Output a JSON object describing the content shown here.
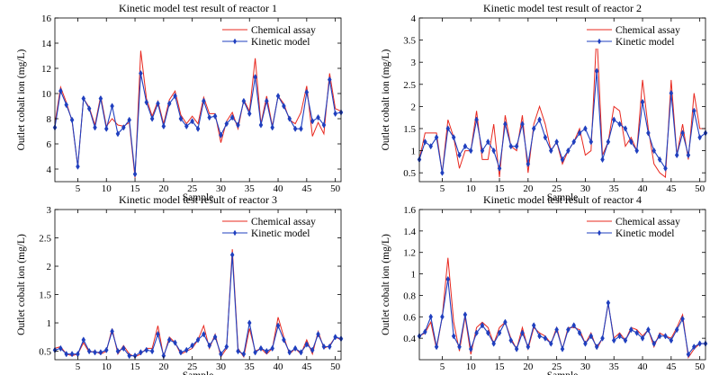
{
  "colors": {
    "chemical": "#e8281f",
    "kinetic": "#1f3fbf",
    "axis": "#000000"
  },
  "legend_labels": [
    "Chemical assay",
    "Kinetic model"
  ],
  "chart_data": [
    {
      "type": "line",
      "title": "Kinetic model test result of reactor 1",
      "xlabel": "Sample",
      "ylabel": "Outlet cobalt ion (mg/L)",
      "xlim": [
        1,
        51
      ],
      "ylim": [
        3,
        16
      ],
      "xticks": [
        5,
        10,
        15,
        20,
        25,
        30,
        35,
        40,
        45,
        50
      ],
      "xtick_labels": [
        "5",
        "10",
        "15",
        "20",
        "25",
        "30",
        "35",
        "40",
        "45",
        "50"
      ],
      "yticks": [
        4,
        6,
        8,
        10,
        12,
        14,
        16
      ],
      "ytick_labels": [
        "4",
        "6",
        "8",
        "10",
        "12",
        "14",
        "16"
      ],
      "grid": false,
      "legend": "top-right",
      "x": [
        1,
        2,
        3,
        4,
        5,
        6,
        7,
        8,
        9,
        10,
        11,
        12,
        13,
        14,
        15,
        16,
        17,
        18,
        19,
        20,
        21,
        22,
        23,
        24,
        25,
        26,
        27,
        28,
        29,
        30,
        31,
        32,
        33,
        34,
        35,
        36,
        37,
        38,
        39,
        40,
        41,
        42,
        43,
        44,
        45,
        46,
        47,
        48,
        49,
        50,
        51
      ],
      "series": [
        {
          "name": "Chemical assay",
          "values": [
            7.6,
            10.5,
            9.3,
            7.8,
            4.2,
            9.6,
            8.9,
            7.5,
            9.8,
            7.4,
            8.0,
            7.5,
            7.4,
            7.7,
            3.3,
            13.4,
            9.6,
            8.2,
            9.4,
            7.6,
            9.5,
            10.2,
            8.3,
            7.6,
            8.2,
            7.6,
            9.7,
            8.4,
            8.4,
            6.1,
            7.8,
            8.5,
            7.2,
            9.5,
            8.6,
            12.8,
            7.6,
            9.8,
            7.4,
            9.8,
            9.2,
            7.9,
            7.6,
            8.5,
            10.6,
            6.6,
            7.7,
            6.8,
            11.6,
            8.8,
            8.6
          ]
        },
        {
          "name": "Kinetic model",
          "values": [
            7.3,
            10.2,
            9.1,
            7.9,
            4.2,
            9.6,
            8.8,
            7.3,
            9.6,
            7.2,
            9.0,
            6.8,
            7.3,
            7.9,
            3.6,
            11.6,
            9.3,
            8.0,
            9.2,
            7.4,
            9.2,
            9.8,
            8.0,
            7.4,
            7.8,
            7.2,
            9.4,
            8.1,
            8.2,
            6.7,
            7.6,
            8.1,
            7.5,
            9.4,
            8.4,
            11.3,
            7.5,
            9.4,
            7.3,
            9.8,
            9.0,
            8.0,
            7.2,
            7.2,
            10.1,
            7.8,
            8.1,
            7.5,
            11.1,
            8.4,
            8.5
          ]
        }
      ]
    },
    {
      "type": "line",
      "title": "Kinetic model test result of reactor 2",
      "xlabel": "Sample",
      "ylabel": "Outlet cobalt ion (mg/L)",
      "xlim": [
        1,
        51
      ],
      "ylim": [
        0.3,
        4
      ],
      "xticks": [
        5,
        10,
        15,
        20,
        25,
        30,
        35,
        40,
        45,
        50
      ],
      "xtick_labels": [
        "5",
        "10",
        "15",
        "20",
        "25",
        "30",
        "35",
        "40",
        "45",
        "50"
      ],
      "yticks": [
        0.5,
        1,
        1.5,
        2,
        2.5,
        3,
        3.5,
        4
      ],
      "ytick_labels": [
        "0.5",
        "1",
        "1.5",
        "2",
        "2.5",
        "3",
        "3.5",
        "4"
      ],
      "grid": false,
      "legend": "top-right",
      "x": [
        1,
        2,
        3,
        4,
        5,
        6,
        7,
        8,
        9,
        10,
        11,
        12,
        13,
        14,
        15,
        16,
        17,
        18,
        19,
        20,
        21,
        22,
        23,
        24,
        25,
        26,
        27,
        28,
        29,
        30,
        31,
        32,
        33,
        34,
        35,
        36,
        37,
        38,
        39,
        40,
        41,
        42,
        43,
        44,
        45,
        46,
        47,
        48,
        49,
        50,
        51
      ],
      "series": [
        {
          "name": "Chemical assay",
          "values": [
            0.8,
            1.4,
            1.4,
            1.4,
            0.5,
            1.7,
            1.3,
            0.6,
            1.0,
            1.0,
            1.9,
            0.8,
            0.8,
            1.6,
            0.4,
            1.8,
            1.1,
            1.0,
            1.8,
            0.5,
            1.6,
            2.0,
            1.6,
            1.0,
            1.2,
            0.7,
            1.0,
            1.2,
            1.5,
            0.9,
            1.0,
            3.7,
            0.9,
            1.2,
            2.0,
            1.9,
            1.1,
            1.3,
            1.0,
            2.6,
            1.5,
            0.7,
            0.5,
            0.4,
            2.6,
            0.9,
            1.6,
            0.8,
            2.3,
            1.5,
            1.5
          ]
        },
        {
          "name": "Kinetic model",
          "values": [
            0.8,
            1.2,
            1.1,
            1.3,
            0.5,
            1.5,
            1.3,
            0.9,
            1.1,
            1.0,
            1.7,
            1.0,
            1.2,
            1.0,
            0.6,
            1.6,
            1.1,
            1.1,
            1.6,
            0.7,
            1.5,
            1.7,
            1.3,
            1.0,
            1.2,
            0.8,
            1.0,
            1.2,
            1.4,
            1.5,
            1.2,
            2.8,
            0.8,
            1.2,
            1.7,
            1.6,
            1.5,
            1.2,
            1.0,
            2.1,
            1.4,
            1.0,
            0.8,
            0.6,
            2.3,
            0.9,
            1.4,
            0.9,
            1.9,
            1.3,
            1.4
          ]
        }
      ]
    },
    {
      "type": "line",
      "title": "Kinetic model test result of reactor 3",
      "xlabel": "Sample",
      "ylabel": "Outlet cobalt ion (mg/L)",
      "xlim": [
        1,
        51
      ],
      "ylim": [
        0.35,
        3
      ],
      "xticks": [
        5,
        10,
        15,
        20,
        25,
        30,
        35,
        40,
        45,
        50
      ],
      "xtick_labels": [
        "5",
        "10",
        "15",
        "20",
        "25",
        "30",
        "35",
        "40",
        "45",
        "50"
      ],
      "yticks": [
        0.5,
        1,
        1.5,
        2,
        2.5,
        3
      ],
      "ytick_labels": [
        "0.5",
        "1",
        "1.5",
        "2",
        "2.5",
        "3"
      ],
      "grid": false,
      "legend": "top-right",
      "x": [
        1,
        2,
        3,
        4,
        5,
        6,
        7,
        8,
        9,
        10,
        11,
        12,
        13,
        14,
        15,
        16,
        17,
        18,
        19,
        20,
        21,
        22,
        23,
        24,
        25,
        26,
        27,
        28,
        29,
        30,
        31,
        32,
        33,
        34,
        35,
        36,
        37,
        38,
        39,
        40,
        41,
        42,
        43,
        44,
        45,
        46,
        47,
        48,
        49,
        50,
        51
      ],
      "series": [
        {
          "name": "Chemical assay",
          "values": [
            0.55,
            0.58,
            0.45,
            0.42,
            0.45,
            0.65,
            0.48,
            0.5,
            0.45,
            0.5,
            0.9,
            0.45,
            0.6,
            0.45,
            0.4,
            0.45,
            0.55,
            0.55,
            0.95,
            0.4,
            0.75,
            0.65,
            0.45,
            0.5,
            0.55,
            0.7,
            0.95,
            0.55,
            0.8,
            0.4,
            0.55,
            2.3,
            0.55,
            0.4,
            0.9,
            0.5,
            0.55,
            0.45,
            0.55,
            1.1,
            0.75,
            0.45,
            0.55,
            0.45,
            0.7,
            0.45,
            0.85,
            0.55,
            0.6,
            0.75,
            0.7
          ]
        },
        {
          "name": "Kinetic model",
          "values": [
            0.52,
            0.55,
            0.45,
            0.45,
            0.45,
            0.7,
            0.5,
            0.48,
            0.48,
            0.52,
            0.85,
            0.5,
            0.55,
            0.42,
            0.42,
            0.48,
            0.52,
            0.5,
            0.8,
            0.42,
            0.7,
            0.65,
            0.48,
            0.52,
            0.6,
            0.7,
            0.8,
            0.6,
            0.75,
            0.45,
            0.58,
            2.2,
            0.5,
            0.45,
            1.0,
            0.48,
            0.55,
            0.5,
            0.55,
            0.95,
            0.7,
            0.48,
            0.55,
            0.48,
            0.62,
            0.52,
            0.8,
            0.58,
            0.58,
            0.75,
            0.72
          ]
        }
      ]
    },
    {
      "type": "line",
      "title": "Kinetic model test result of reactor 4",
      "xlabel": "Sample",
      "ylabel": "Outlet cobalt ion (mg/L)",
      "xlim": [
        1,
        51
      ],
      "ylim": [
        0.2,
        1.6
      ],
      "xticks": [
        5,
        10,
        15,
        20,
        25,
        30,
        35,
        40,
        45,
        50
      ],
      "xtick_labels": [
        "5",
        "10",
        "15",
        "20",
        "25",
        "30",
        "35",
        "40",
        "45",
        "50"
      ],
      "yticks": [
        0.4,
        0.6,
        0.8,
        1,
        1.2,
        1.4,
        1.6
      ],
      "ytick_labels": [
        "0.4",
        "0.6",
        "0.8",
        "1",
        "1.2",
        "1.4",
        "1.6"
      ],
      "grid": false,
      "legend": "top-right",
      "x": [
        1,
        2,
        3,
        4,
        5,
        6,
        7,
        8,
        9,
        10,
        11,
        12,
        13,
        14,
        15,
        16,
        17,
        18,
        19,
        20,
        21,
        22,
        23,
        24,
        25,
        26,
        27,
        28,
        29,
        30,
        31,
        32,
        33,
        34,
        35,
        36,
        37,
        38,
        39,
        40,
        41,
        42,
        43,
        44,
        45,
        46,
        47,
        48,
        49,
        50,
        51
      ],
      "series": [
        {
          "name": "Chemical assay",
          "values": [
            0.42,
            0.45,
            0.55,
            0.3,
            0.6,
            1.15,
            0.55,
            0.28,
            0.6,
            0.25,
            0.5,
            0.55,
            0.5,
            0.35,
            0.5,
            0.55,
            0.4,
            0.3,
            0.5,
            0.3,
            0.5,
            0.45,
            0.42,
            0.35,
            0.5,
            0.3,
            0.5,
            0.5,
            0.48,
            0.35,
            0.45,
            0.3,
            0.4,
            0.72,
            0.4,
            0.45,
            0.38,
            0.5,
            0.48,
            0.42,
            0.48,
            0.32,
            0.45,
            0.42,
            0.4,
            0.5,
            0.62,
            0.22,
            0.3,
            0.35,
            0.35
          ]
        },
        {
          "name": "Kinetic model",
          "values": [
            0.42,
            0.46,
            0.6,
            0.32,
            0.6,
            0.95,
            0.42,
            0.32,
            0.62,
            0.3,
            0.45,
            0.52,
            0.45,
            0.35,
            0.45,
            0.55,
            0.38,
            0.3,
            0.45,
            0.32,
            0.52,
            0.42,
            0.4,
            0.35,
            0.48,
            0.3,
            0.48,
            0.52,
            0.45,
            0.35,
            0.42,
            0.32,
            0.4,
            0.73,
            0.38,
            0.42,
            0.38,
            0.48,
            0.45,
            0.4,
            0.48,
            0.35,
            0.42,
            0.42,
            0.38,
            0.48,
            0.58,
            0.25,
            0.32,
            0.35,
            0.35
          ]
        }
      ]
    }
  ]
}
